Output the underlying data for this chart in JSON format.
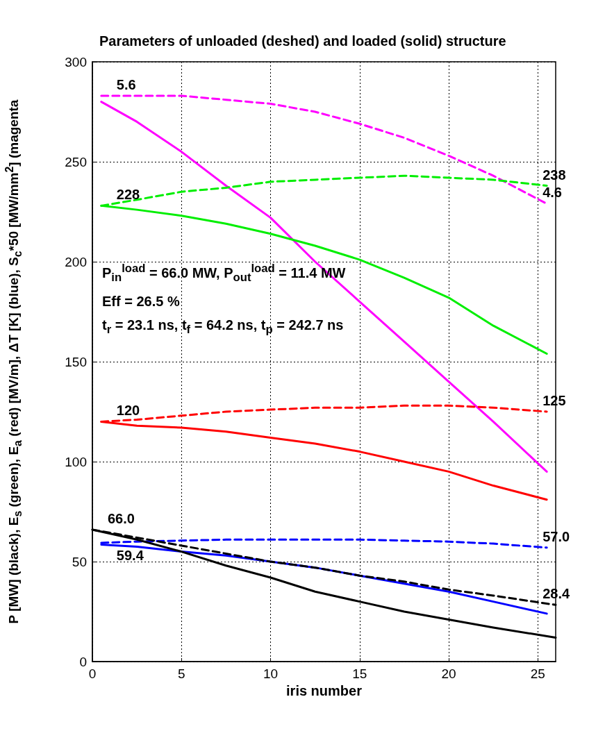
{
  "chart_data": {
    "type": "line",
    "title": "Parameters of unloaded (deshed) and loaded (solid) structure",
    "xlabel": "iris number",
    "ylabel": "P [MW] (black), E$_{s}$ (green), E$_{a}$ (red) [MV/m], ΔT [K] (blue), S$_{c}$*50 [MW/mm$^{2}$] (magenta",
    "xlim": [
      0,
      26
    ],
    "ylim": [
      0,
      300
    ],
    "xticks": [
      0,
      5,
      10,
      15,
      20,
      25
    ],
    "yticks": [
      0,
      50,
      100,
      150,
      200,
      250,
      300
    ],
    "grid": true,
    "series": [
      {
        "color": "#ff00ff",
        "line_style": "dashed",
        "x": [
          0.5,
          2.5,
          5,
          7.5,
          10,
          12.5,
          15,
          17.5,
          20,
          22.5,
          25.5
        ],
        "values": [
          283,
          283,
          283,
          281,
          279,
          275,
          269,
          262,
          253,
          243,
          229
        ]
      },
      {
        "color": "#ff00ff",
        "line_style": "solid",
        "x": [
          0.5,
          2.5,
          5,
          7.5,
          10,
          12.5,
          15,
          17.5,
          20,
          22.5,
          25.5
        ],
        "values": [
          280,
          270,
          255,
          238,
          222,
          200,
          180,
          160,
          140,
          120,
          95
        ]
      },
      {
        "color": "#00ee00",
        "line_style": "dashed",
        "x": [
          0.5,
          2.5,
          5,
          7.5,
          10,
          12.5,
          15,
          17.5,
          20,
          22.5,
          25.5
        ],
        "values": [
          228,
          231,
          235,
          237,
          240,
          241,
          242,
          243,
          242,
          241,
          238
        ]
      },
      {
        "color": "#00ee00",
        "line_style": "solid",
        "x": [
          0.5,
          2.5,
          5,
          7.5,
          10,
          12.5,
          15,
          17.5,
          20,
          22.5,
          25.5
        ],
        "values": [
          228,
          226,
          223,
          219,
          214,
          208,
          201,
          192,
          182,
          168,
          154
        ]
      },
      {
        "color": "#ff0000",
        "line_style": "dashed",
        "x": [
          0.5,
          2.5,
          5,
          7.5,
          10,
          12.5,
          15,
          17.5,
          20,
          22.5,
          25.5
        ],
        "values": [
          120,
          121,
          123,
          125,
          126,
          127,
          127,
          128,
          128,
          127,
          125
        ]
      },
      {
        "color": "#ff0000",
        "line_style": "solid",
        "x": [
          0.5,
          2.5,
          5,
          7.5,
          10,
          12.5,
          15,
          17.5,
          20,
          22.5,
          25.5
        ],
        "values": [
          120,
          118,
          117,
          115,
          112,
          109,
          105,
          100,
          95,
          88,
          81
        ]
      },
      {
        "color": "#0000ff",
        "line_style": "dashed",
        "x": [
          0.5,
          2.5,
          5,
          7.5,
          10,
          12.5,
          15,
          17.5,
          20,
          22.5,
          25.5
        ],
        "values": [
          59.4,
          60,
          60.5,
          61,
          61,
          61,
          61,
          60.5,
          60,
          59,
          57
        ]
      },
      {
        "color": "#0000ff",
        "line_style": "solid",
        "x": [
          0.5,
          2.5,
          5,
          7.5,
          10,
          12.5,
          15,
          17.5,
          20,
          22.5,
          25.5
        ],
        "values": [
          58.5,
          57.5,
          55,
          53,
          50,
          47,
          43,
          39,
          35,
          30,
          24
        ]
      },
      {
        "color": "#000000",
        "line_style": "dashed",
        "x": [
          0,
          2.5,
          5,
          7.5,
          10,
          12.5,
          15,
          17.5,
          20,
          22.5,
          25.5,
          26
        ],
        "values": [
          66,
          62,
          58,
          54,
          50,
          47,
          43,
          40,
          36,
          33,
          29,
          28.4
        ]
      },
      {
        "color": "#000000",
        "line_style": "solid",
        "x": [
          0,
          2.5,
          5,
          7.5,
          10,
          12.5,
          15,
          17.5,
          20,
          22.5,
          26
        ],
        "values": [
          66,
          61,
          55,
          48,
          42,
          35,
          30,
          25,
          21,
          17,
          12
        ]
      }
    ],
    "annotations": [
      {
        "text": "5.6",
        "x": 0.5,
        "y": 283
      },
      {
        "text": "4.6",
        "x": 25.5,
        "y": 229
      },
      {
        "text": "228",
        "x": 0.5,
        "y": 228
      },
      {
        "text": "238",
        "x": 25.5,
        "y": 238
      },
      {
        "text": "120",
        "x": 0.5,
        "y": 120
      },
      {
        "text": "125",
        "x": 25.5,
        "y": 125
      },
      {
        "text": "66.0",
        "x": 0,
        "y": 66
      },
      {
        "text": "59.4",
        "x": 0.5,
        "y": 59.4
      },
      {
        "text": "57.0",
        "x": 25.5,
        "y": 57
      },
      {
        "text": "28.4",
        "x": 25.5,
        "y": 28.4
      },
      "P$_{in}$$^{load}$ =  66.0 MW, P$_{out}$$^{load}$ =  11.4 MW",
      "Eff = 26.5 %",
      "t$_{r}$ = 23.1 ns, t$_{f}$ = 64.2 ns, t$_{p}$ = 242.7 ns"
    ]
  }
}
